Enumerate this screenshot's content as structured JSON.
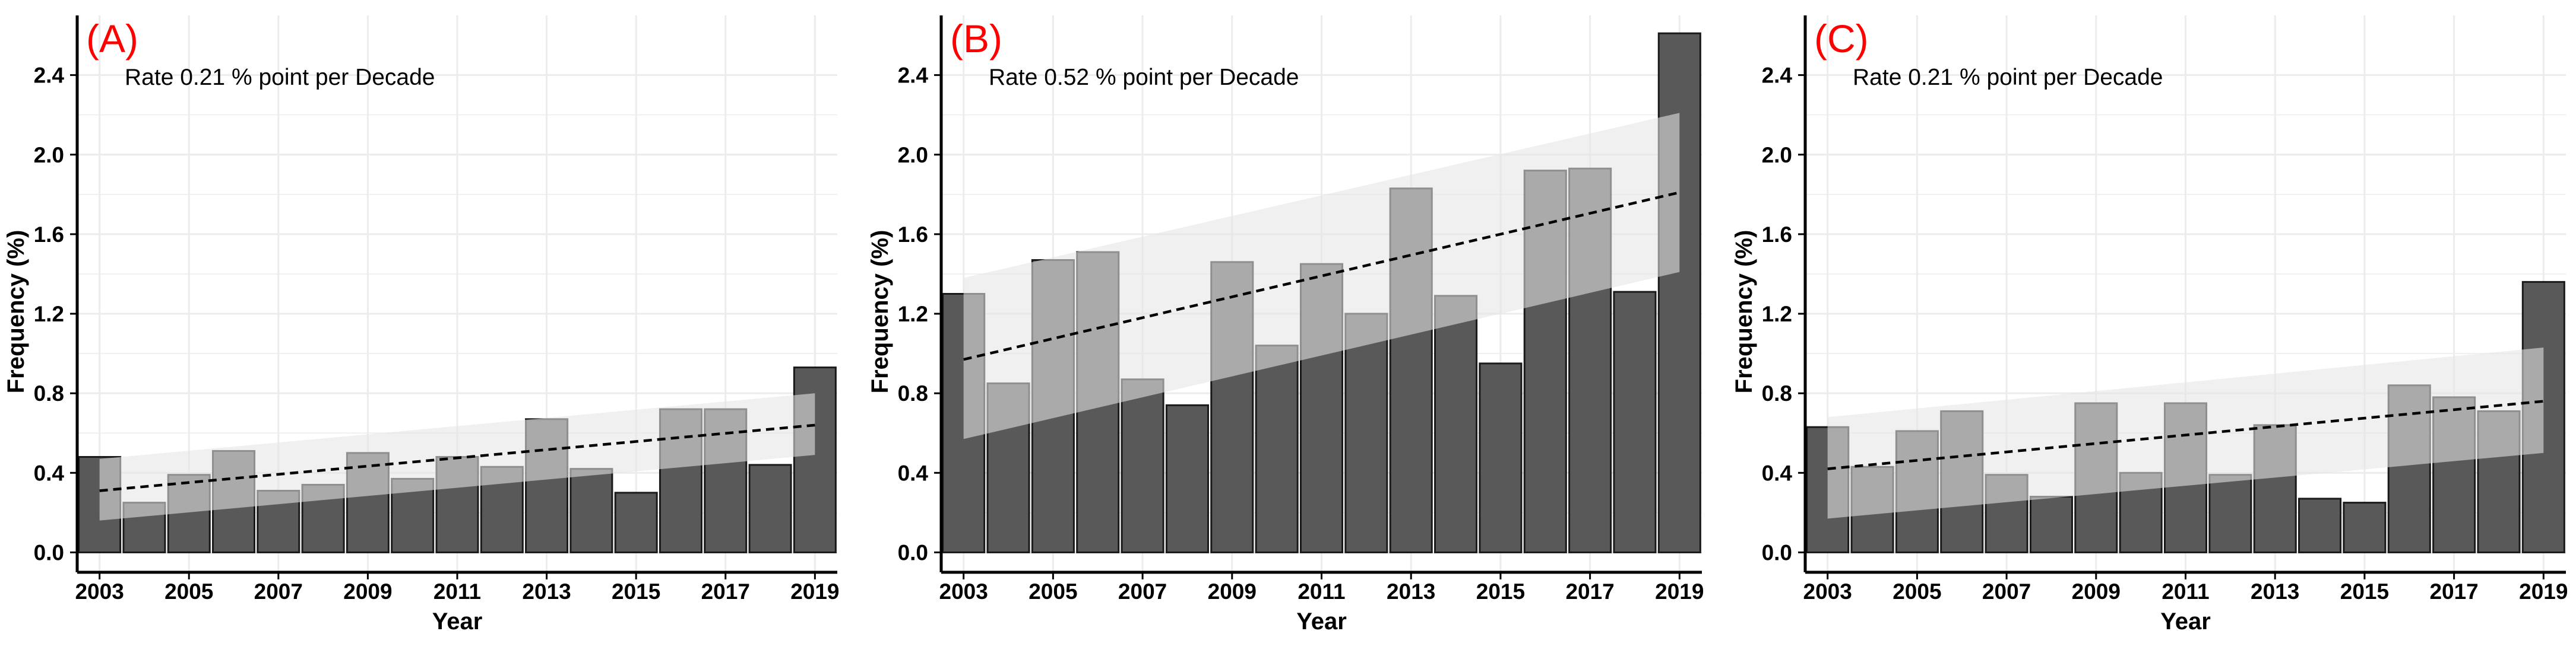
{
  "chart_data": [
    {
      "panel_label": "(A)",
      "type": "bar",
      "title": "",
      "annotation": "Rate 0.21 % point per Decade",
      "xlabel": "Year",
      "ylabel": "Frequency (%)",
      "ylim": [
        -0.1,
        2.7
      ],
      "y_ticks": [
        "0.0",
        "0.4",
        "0.8",
        "1.2",
        "1.6",
        "2.0",
        "2.4"
      ],
      "x_ticks": [
        "2003",
        "2005",
        "2007",
        "2009",
        "2011",
        "2013",
        "2015",
        "2017",
        "2019"
      ],
      "categories": [
        "2003",
        "2004",
        "2005",
        "2006",
        "2007",
        "2008",
        "2009",
        "2010",
        "2011",
        "2012",
        "2013",
        "2014",
        "2015",
        "2016",
        "2017",
        "2018",
        "2019"
      ],
      "values": [
        0.48,
        0.25,
        0.39,
        0.51,
        0.31,
        0.34,
        0.5,
        0.37,
        0.48,
        0.43,
        0.67,
        0.42,
        0.3,
        0.72,
        0.72,
        0.44,
        0.93
      ],
      "trend": {
        "start": 0.31,
        "end": 0.64,
        "ci_lower_start": 0.16,
        "ci_upper_start": 0.47,
        "ci_lower_end": 0.49,
        "ci_upper_end": 0.8
      }
    },
    {
      "panel_label": "(B)",
      "type": "bar",
      "title": "",
      "annotation": "Rate 0.52 % point per Decade",
      "xlabel": "Year",
      "ylabel": "Frequency (%)",
      "ylim": [
        -0.1,
        2.7
      ],
      "y_ticks": [
        "0.0",
        "0.4",
        "0.8",
        "1.2",
        "1.6",
        "2.0",
        "2.4"
      ],
      "x_ticks": [
        "2003",
        "2005",
        "2007",
        "2009",
        "2011",
        "2013",
        "2015",
        "2017",
        "2019"
      ],
      "categories": [
        "2003",
        "2004",
        "2005",
        "2006",
        "2007",
        "2008",
        "2009",
        "2010",
        "2011",
        "2012",
        "2013",
        "2014",
        "2015",
        "2016",
        "2017",
        "2018",
        "2019"
      ],
      "values": [
        1.3,
        0.85,
        1.47,
        1.51,
        0.87,
        0.74,
        1.46,
        1.04,
        1.45,
        1.2,
        1.83,
        1.29,
        0.95,
        1.92,
        1.93,
        1.31,
        2.61
      ],
      "trend": {
        "start": 0.97,
        "end": 1.81,
        "ci_lower_start": 0.57,
        "ci_upper_start": 1.38,
        "ci_lower_end": 1.41,
        "ci_upper_end": 2.21
      }
    },
    {
      "panel_label": "(C)",
      "type": "bar",
      "title": "",
      "annotation": "Rate 0.21 % point per Decade",
      "xlabel": "Year",
      "ylabel": "Frequency (%)",
      "ylim": [
        -0.1,
        2.7
      ],
      "y_ticks": [
        "0.0",
        "0.4",
        "0.8",
        "1.2",
        "1.6",
        "2.0",
        "2.4"
      ],
      "x_ticks": [
        "2003",
        "2005",
        "2007",
        "2009",
        "2011",
        "2013",
        "2015",
        "2017",
        "2019"
      ],
      "categories": [
        "2003",
        "2004",
        "2005",
        "2006",
        "2007",
        "2008",
        "2009",
        "2010",
        "2011",
        "2012",
        "2013",
        "2014",
        "2015",
        "2016",
        "2017",
        "2018",
        "2019"
      ],
      "values": [
        0.63,
        0.43,
        0.61,
        0.71,
        0.39,
        0.28,
        0.75,
        0.4,
        0.75,
        0.39,
        0.64,
        0.27,
        0.25,
        0.84,
        0.78,
        0.71,
        1.36
      ],
      "trend": {
        "start": 0.42,
        "end": 0.76,
        "ci_lower_start": 0.17,
        "ci_upper_start": 0.68,
        "ci_lower_end": 0.5,
        "ci_upper_end": 1.03
      }
    }
  ],
  "style": {
    "bar_fill": "#595959",
    "bar_stroke": "#1a1a1a",
    "ci_band": "#e6e6e6",
    "grid": "#ececec",
    "trend_line": "#000000",
    "panel_label_color": "#ff0000",
    "axis_color": "#000000"
  }
}
